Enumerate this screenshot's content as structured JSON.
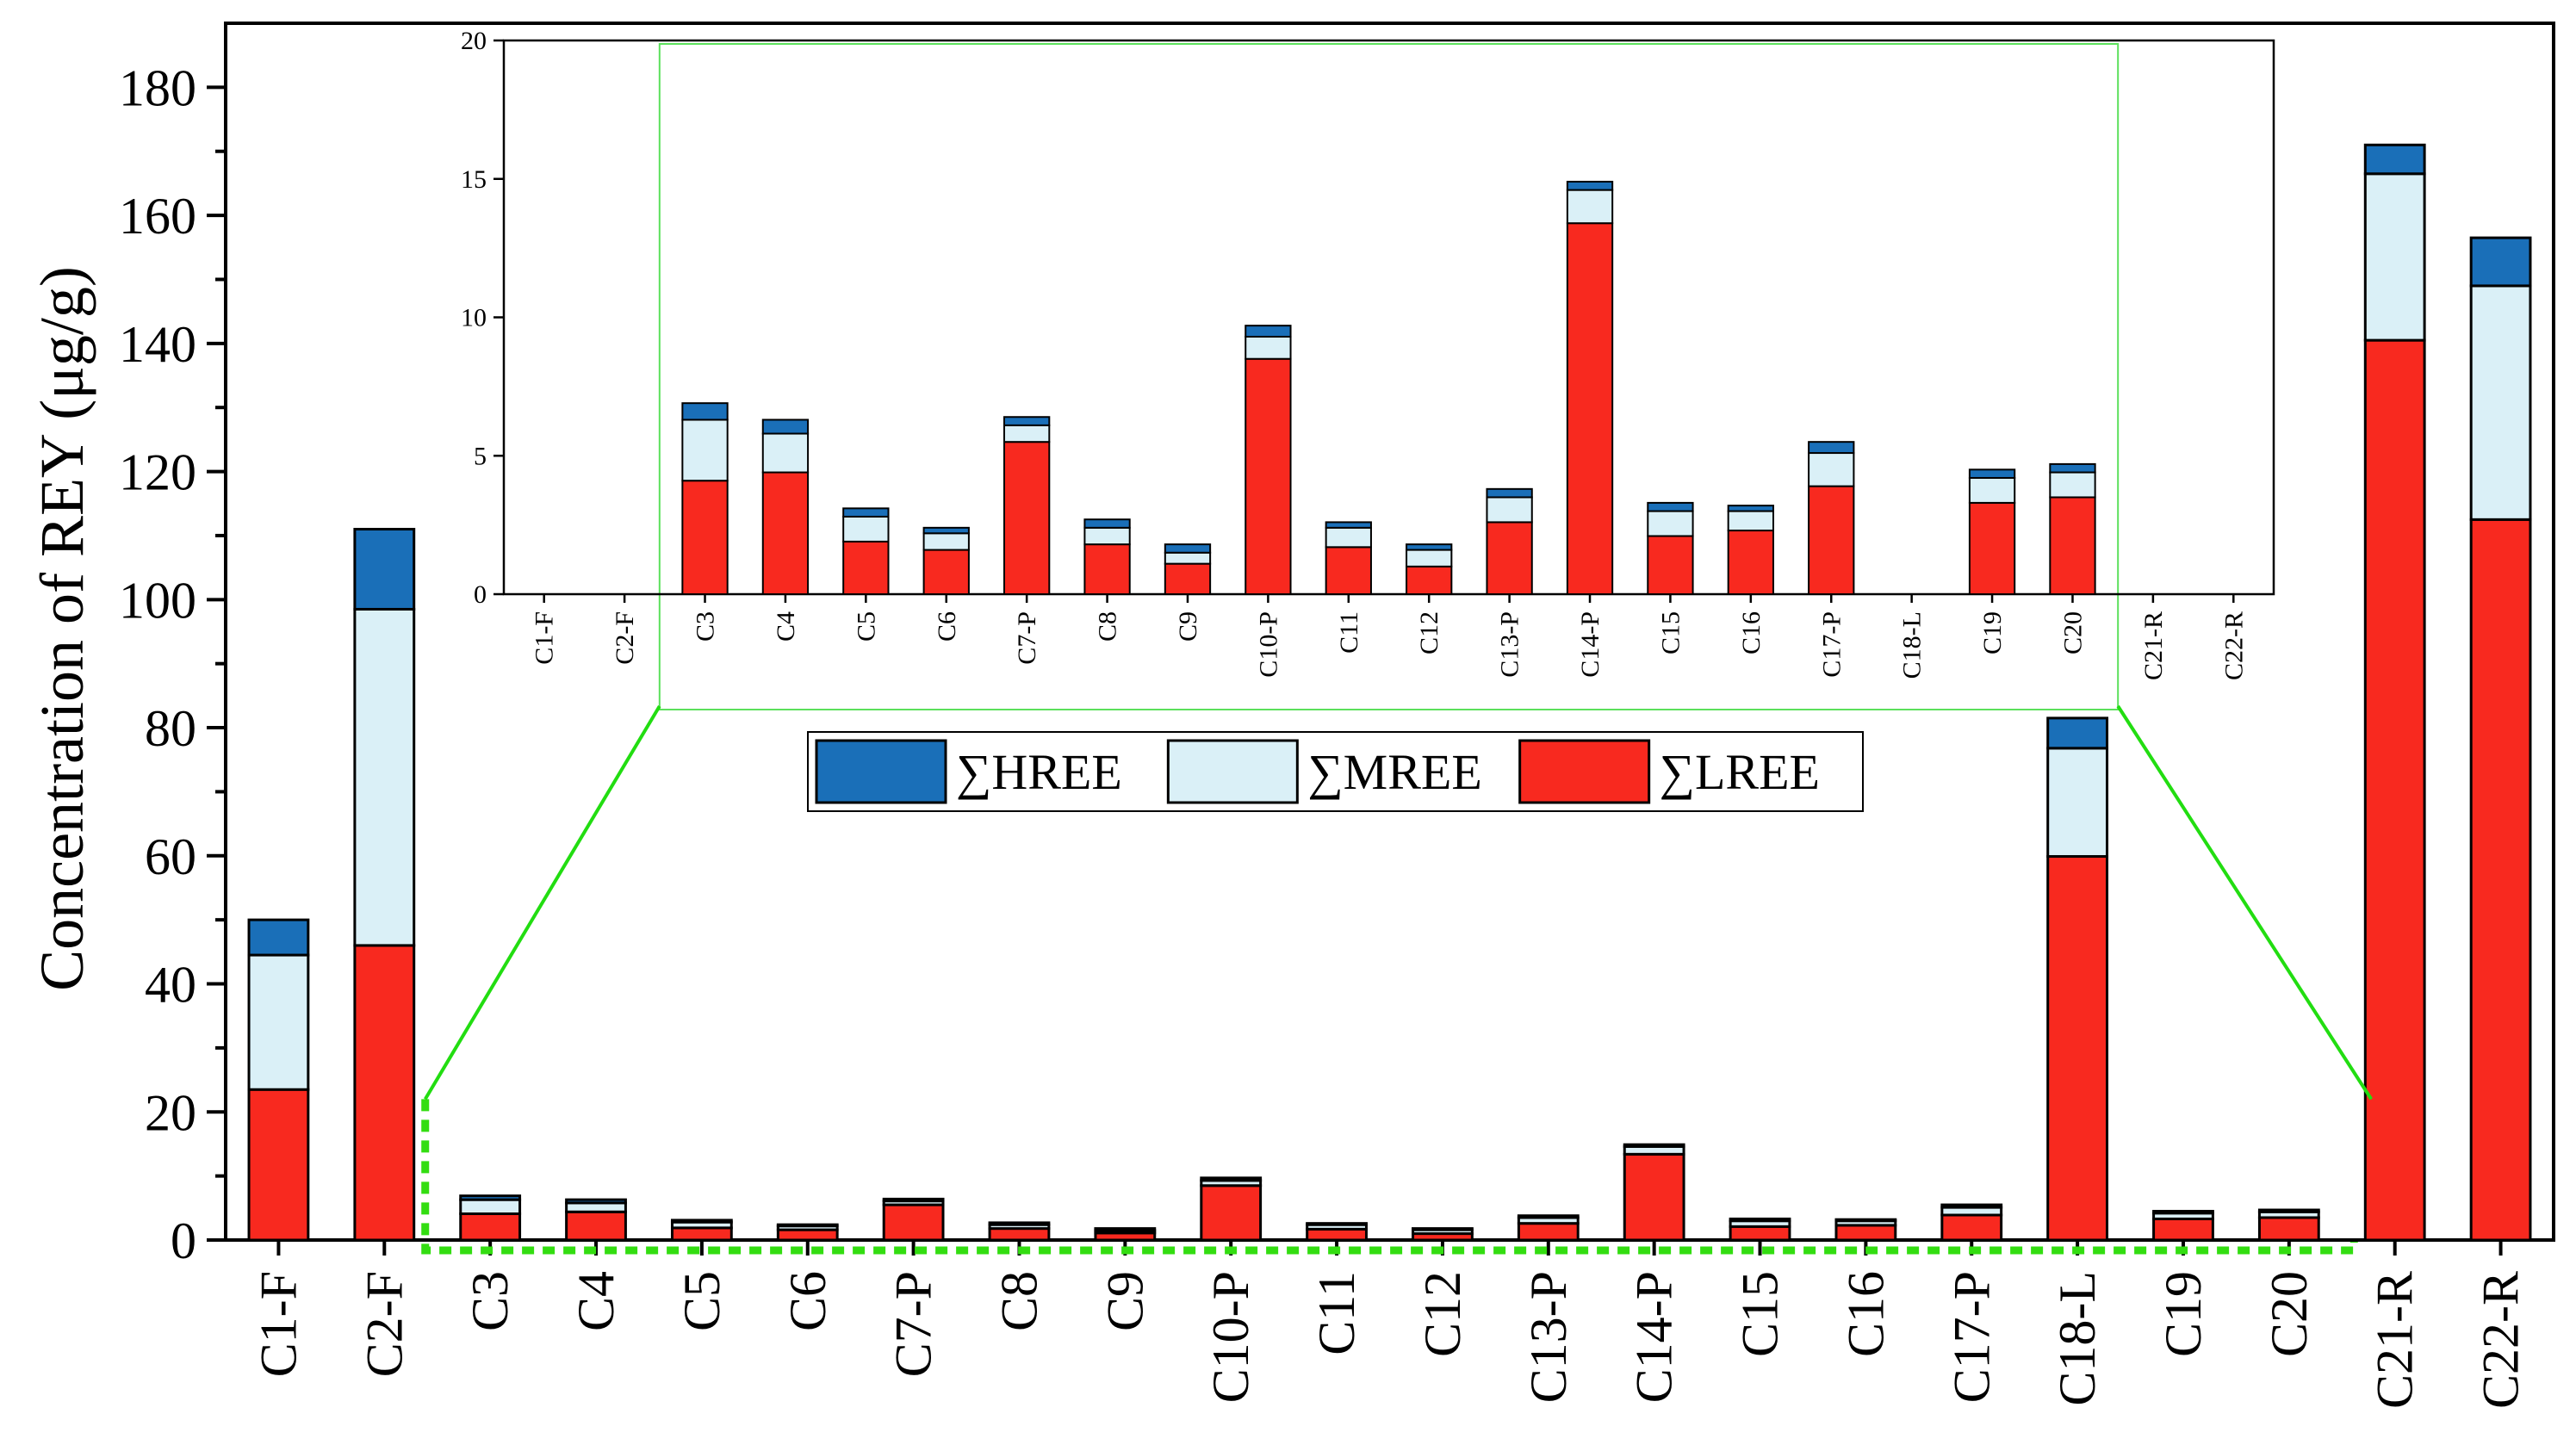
{
  "chart_data": {
    "type": "bar",
    "stacked": true,
    "ylabel": "Concentration of REY (μg/g)",
    "ylim": [
      0,
      190
    ],
    "yticks": [
      0,
      20,
      40,
      60,
      80,
      100,
      120,
      140,
      160,
      180
    ],
    "categories": [
      "C1-F",
      "C2-F",
      "C3",
      "C4",
      "C5",
      "C6",
      "C7-P",
      "C8",
      "C9",
      "C10-P",
      "C11",
      "C12",
      "C13-P",
      "C14-P",
      "C15",
      "C16",
      "C17-P",
      "C18-L",
      "C19",
      "C20",
      "C21-R",
      "C22-R"
    ],
    "series": [
      {
        "name": "∑LREE",
        "color": "#f8291f",
        "values": [
          23.5,
          46,
          4.1,
          4.4,
          1.9,
          1.6,
          5.5,
          1.8,
          1.1,
          8.5,
          1.7,
          1.0,
          2.6,
          13.4,
          2.1,
          2.3,
          3.9,
          59.9,
          3.3,
          3.5,
          140.5,
          112.5
        ]
      },
      {
        "name": "∑MREE",
        "color": "#daf0f7",
        "values": [
          21,
          52.5,
          2.2,
          1.4,
          0.9,
          0.6,
          0.6,
          0.6,
          0.4,
          0.8,
          0.7,
          0.6,
          0.9,
          1.2,
          0.9,
          0.7,
          1.2,
          16.9,
          0.9,
          0.9,
          26,
          36.5
        ]
      },
      {
        "name": "∑HREE",
        "color": "#1a6fb8",
        "values": [
          5.5,
          12.5,
          0.6,
          0.5,
          0.3,
          0.2,
          0.3,
          0.3,
          0.3,
          0.4,
          0.2,
          0.2,
          0.3,
          0.3,
          0.3,
          0.2,
          0.4,
          4.7,
          0.3,
          0.3,
          4.5,
          7.5
        ]
      }
    ],
    "legend": {
      "placement": "upper-center",
      "order": [
        "∑HREE",
        "∑MREE",
        "∑LREE"
      ]
    },
    "inset": {
      "ylim": [
        0,
        20
      ],
      "yticks": [
        0,
        5,
        10,
        15,
        20
      ],
      "shown_categories": [
        "C3",
        "C4",
        "C5",
        "C6",
        "C7-P",
        "C8",
        "C9",
        "C10-P",
        "C11",
        "C12",
        "C13-P",
        "C14-P",
        "C15",
        "C16",
        "C17-P",
        "C19",
        "C20"
      ],
      "placement": "top-center"
    }
  }
}
